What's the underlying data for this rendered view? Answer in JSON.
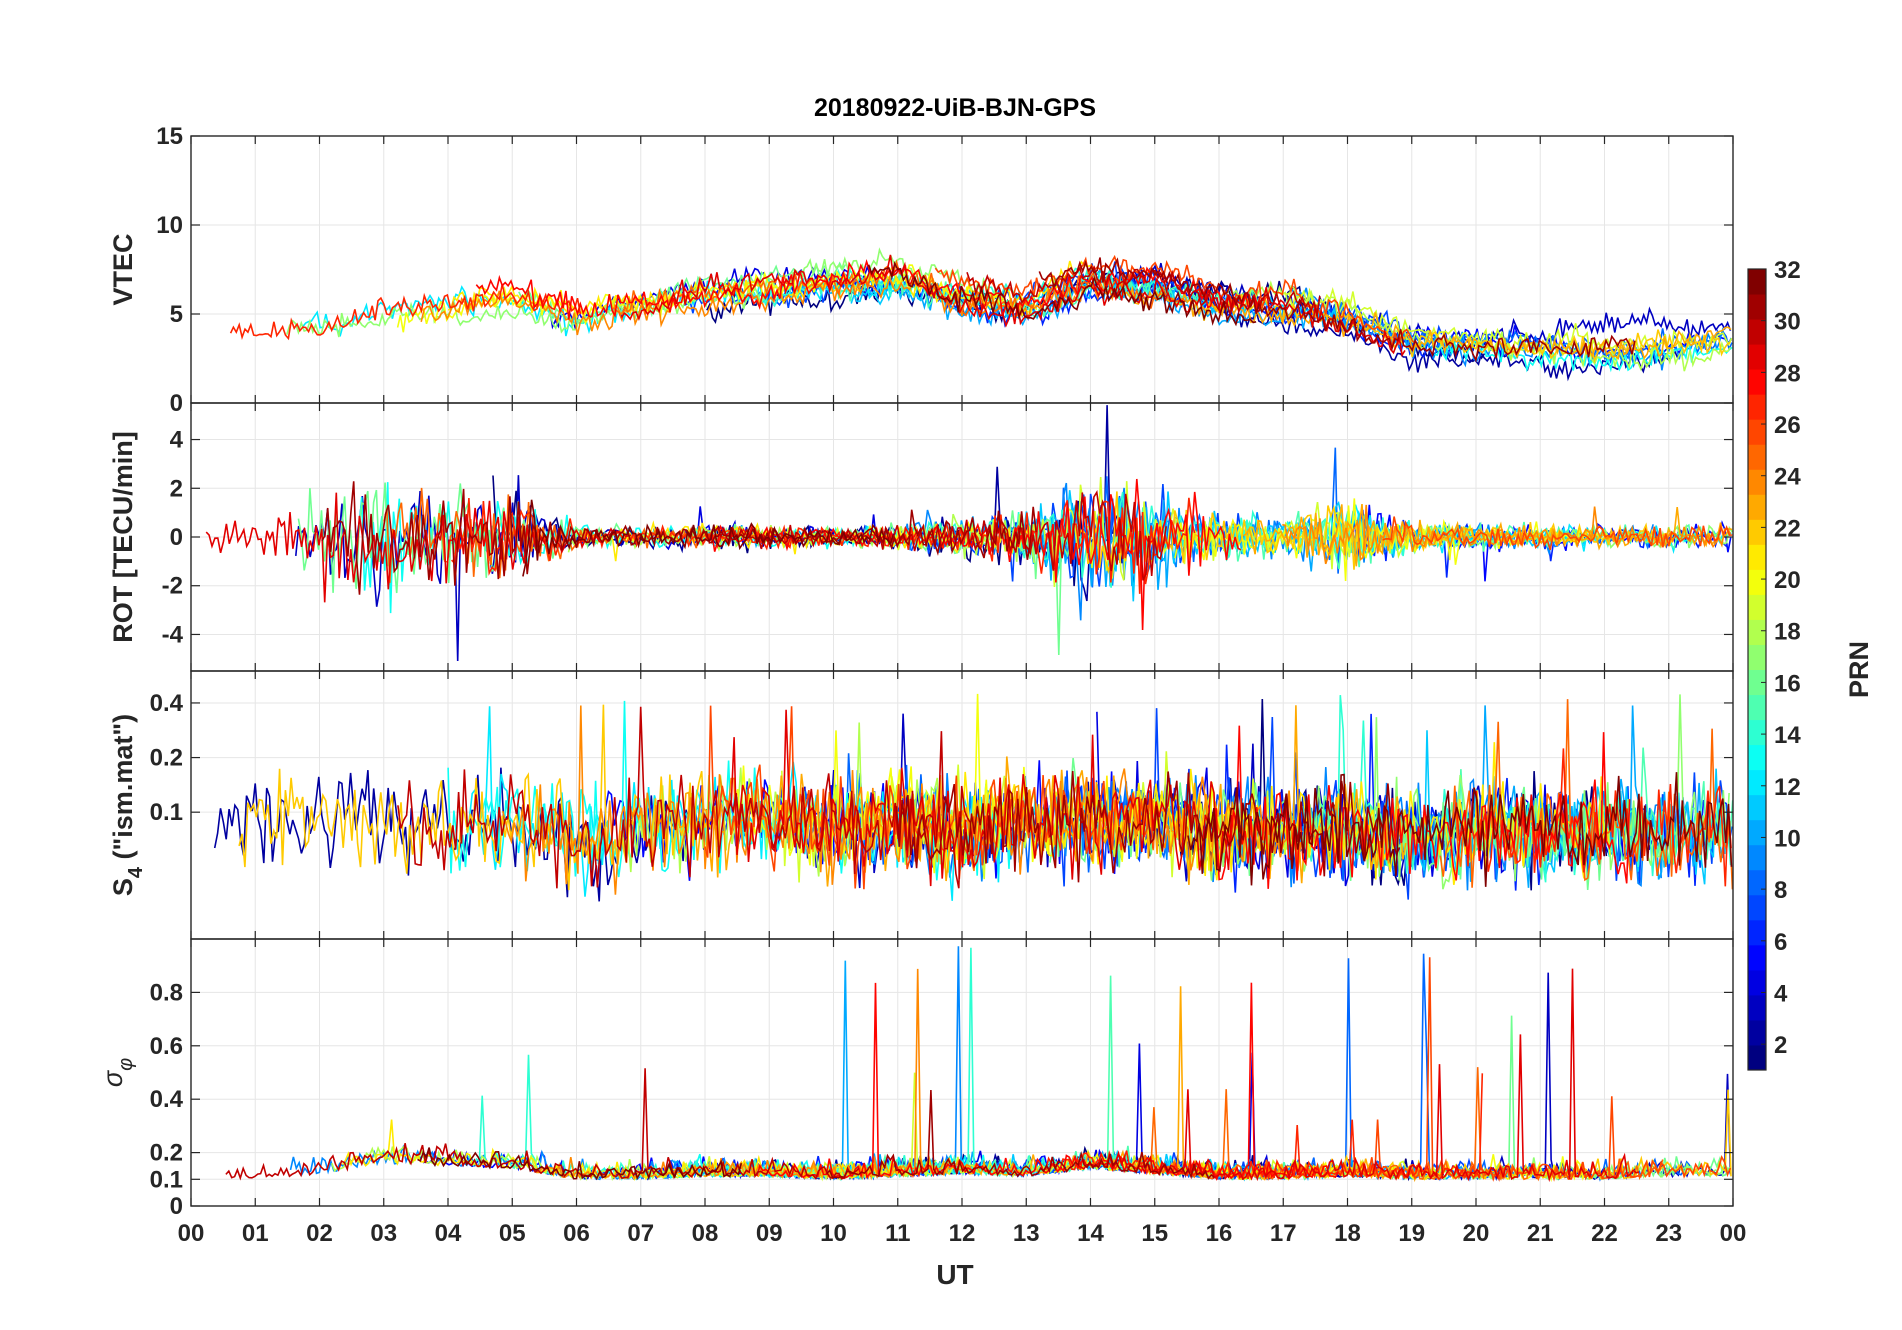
{
  "chart_data": {
    "type": "line",
    "title": "20180922-UiB-BJN-GPS",
    "xlabel": "UT",
    "x_ticks": [
      "00",
      "01",
      "02",
      "03",
      "04",
      "05",
      "06",
      "07",
      "08",
      "09",
      "10",
      "11",
      "12",
      "13",
      "14",
      "15",
      "16",
      "17",
      "18",
      "19",
      "20",
      "21",
      "22",
      "23",
      "00"
    ],
    "xlim_hours": [
      0,
      24
    ],
    "grid": true,
    "panels": [
      {
        "id": "vtec",
        "ylabel": "VTEC",
        "ylim": [
          0,
          15
        ],
        "y_ticks": [
          "0",
          "5",
          "10",
          "15"
        ],
        "profile_hours": [
          0,
          1,
          2,
          3,
          4,
          5,
          6,
          7,
          8,
          9,
          10,
          11,
          12,
          13,
          14,
          15,
          16,
          17,
          18,
          19,
          20,
          21,
          22,
          23,
          24
        ],
        "profile_values": [
          4.8,
          4.2,
          4.4,
          5.2,
          5.6,
          5.8,
          5.0,
          5.6,
          6.3,
          6.6,
          7.0,
          7.2,
          6.0,
          5.4,
          7.0,
          6.6,
          5.8,
          5.4,
          4.8,
          3.4,
          3.2,
          3.0,
          2.8,
          3.0,
          3.2
        ],
        "noise": 0.9
      },
      {
        "id": "rot",
        "ylabel": "ROT [TECU/min]",
        "ylim": [
          -5.5,
          5.5
        ],
        "y_ticks": [
          "-4",
          "-2",
          "0",
          "2",
          "4"
        ],
        "profile_hours": [
          0,
          1,
          2,
          3,
          4,
          5,
          6,
          7,
          8,
          9,
          10,
          11,
          12,
          13,
          14,
          15,
          16,
          17,
          18,
          19,
          20,
          21,
          22,
          23,
          24
        ],
        "profile_values": [
          0.6,
          0.5,
          1.4,
          1.8,
          1.6,
          1.5,
          0.4,
          0.3,
          0.4,
          0.4,
          0.3,
          0.4,
          0.6,
          0.8,
          2.0,
          1.4,
          0.8,
          0.6,
          1.2,
          0.5,
          0.4,
          0.4,
          0.3,
          0.4,
          0.4
        ],
        "noise": 1.0
      },
      {
        "id": "s4",
        "ylabel": "S4 (\"ism.mat\")",
        "ylabel_main": "S",
        "ylabel_sub": "4",
        "ylabel_rest": " (\"ism.mat\")",
        "ylim": [
          0.02,
          0.6
        ],
        "scale": "log",
        "y_ticks": [
          "0.1",
          "0.2",
          "0.4"
        ],
        "profile_hours": [
          0,
          1,
          2,
          3,
          4,
          5,
          6,
          7,
          8,
          9,
          10,
          11,
          12,
          13,
          14,
          15,
          16,
          17,
          18,
          19,
          20,
          21,
          22,
          23,
          24
        ],
        "profile_values": [
          0.08,
          0.08,
          0.09,
          0.09,
          0.08,
          0.09,
          0.07,
          0.08,
          0.09,
          0.09,
          0.08,
          0.09,
          0.08,
          0.09,
          0.09,
          0.09,
          0.08,
          0.08,
          0.08,
          0.07,
          0.08,
          0.08,
          0.08,
          0.08,
          0.08
        ],
        "noise": 0.5
      },
      {
        "id": "sigma",
        "ylabel": "σφ",
        "ylabel_main": "σ",
        "ylabel_sub": "φ",
        "ylim": [
          0,
          1
        ],
        "y_ticks": [
          "0",
          "0.1",
          "0.2",
          "0.4",
          "0.6",
          "0.8"
        ],
        "profile_hours": [
          0,
          1,
          2,
          3,
          4,
          5,
          6,
          7,
          8,
          9,
          10,
          11,
          12,
          13,
          14,
          15,
          16,
          17,
          18,
          19,
          20,
          21,
          22,
          23,
          24
        ],
        "profile_values": [
          0.11,
          0.1,
          0.12,
          0.16,
          0.15,
          0.14,
          0.1,
          0.1,
          0.11,
          0.11,
          0.1,
          0.11,
          0.12,
          0.11,
          0.14,
          0.12,
          0.1,
          0.1,
          0.11,
          0.1,
          0.1,
          0.1,
          0.1,
          0.11,
          0.11
        ],
        "noise": 0.03
      }
    ],
    "series_count": 32,
    "colorbar": {
      "label": "PRN",
      "range": [
        1,
        32
      ],
      "ticks": [
        "2",
        "4",
        "6",
        "8",
        "10",
        "12",
        "14",
        "16",
        "18",
        "20",
        "22",
        "24",
        "26",
        "28",
        "30",
        "32"
      ],
      "colormap": "jet"
    }
  }
}
